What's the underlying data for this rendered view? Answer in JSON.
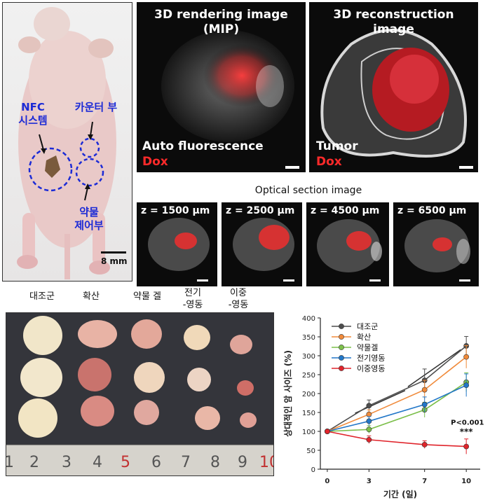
{
  "mouse_panel": {
    "nfc_label": "NFC\n시스템",
    "counter_label": "카운터 부",
    "drug_control_label": "약물\n제어부",
    "scale_label": "8 mm"
  },
  "render_panel": {
    "title": "3D rendering image\n(MIP)",
    "label1": "Auto fluorescence",
    "label2": "Dox"
  },
  "recon_panel": {
    "title": "3D reconstruction\nimage",
    "label1": "Tumor",
    "label2": "Dox"
  },
  "optical": {
    "title": "Optical section image",
    "sections": [
      "z = 1500 μm",
      "z = 2500 μm",
      "z = 4500 μm",
      "z = 6500 μm"
    ]
  },
  "tumor_columns": [
    "대조군",
    "확산",
    "약물 겔",
    "전기\n-영동",
    "이중\n-영동"
  ],
  "ruler_numbers": [
    "1",
    "2",
    "3",
    "4",
    "5",
    "6",
    "7",
    "8",
    "9",
    "10"
  ],
  "colors": {
    "control": "#4d4d4d",
    "diffusion": "#f08a3a",
    "gel": "#7cbf4a",
    "electro": "#2277c8",
    "dual": "#e0242b"
  },
  "chart_data": {
    "type": "line",
    "xlabel": "기간 (일)",
    "ylabel": "상대적인 암 사이즈 (%)",
    "x": [
      0,
      3,
      7,
      10
    ],
    "xticks": [
      "0",
      "3",
      "7",
      "10"
    ],
    "yticks": [
      "0",
      "50",
      "100",
      "150",
      "200",
      "250",
      "300",
      "350",
      "400"
    ],
    "ylim": [
      0,
      400
    ],
    "legend_position": "top-left",
    "series": [
      {
        "name": "대조군",
        "values": [
          100,
          168,
          235,
          326
        ],
        "errors": [
          0,
          15,
          30,
          25
        ]
      },
      {
        "name": "확산",
        "values": [
          100,
          145,
          210,
          297
        ],
        "errors": [
          0,
          12,
          25,
          30
        ]
      },
      {
        "name": "약물겔",
        "values": [
          100,
          105,
          157,
          230
        ],
        "errors": [
          0,
          10,
          20,
          25
        ]
      },
      {
        "name": "전기영동",
        "values": [
          100,
          127,
          171,
          222
        ],
        "errors": [
          0,
          12,
          20,
          30
        ]
      },
      {
        "name": "이중영동",
        "values": [
          100,
          78,
          65,
          60
        ],
        "errors": [
          0,
          10,
          10,
          20
        ]
      }
    ],
    "annotations": [
      "P<0.001",
      "***"
    ]
  }
}
